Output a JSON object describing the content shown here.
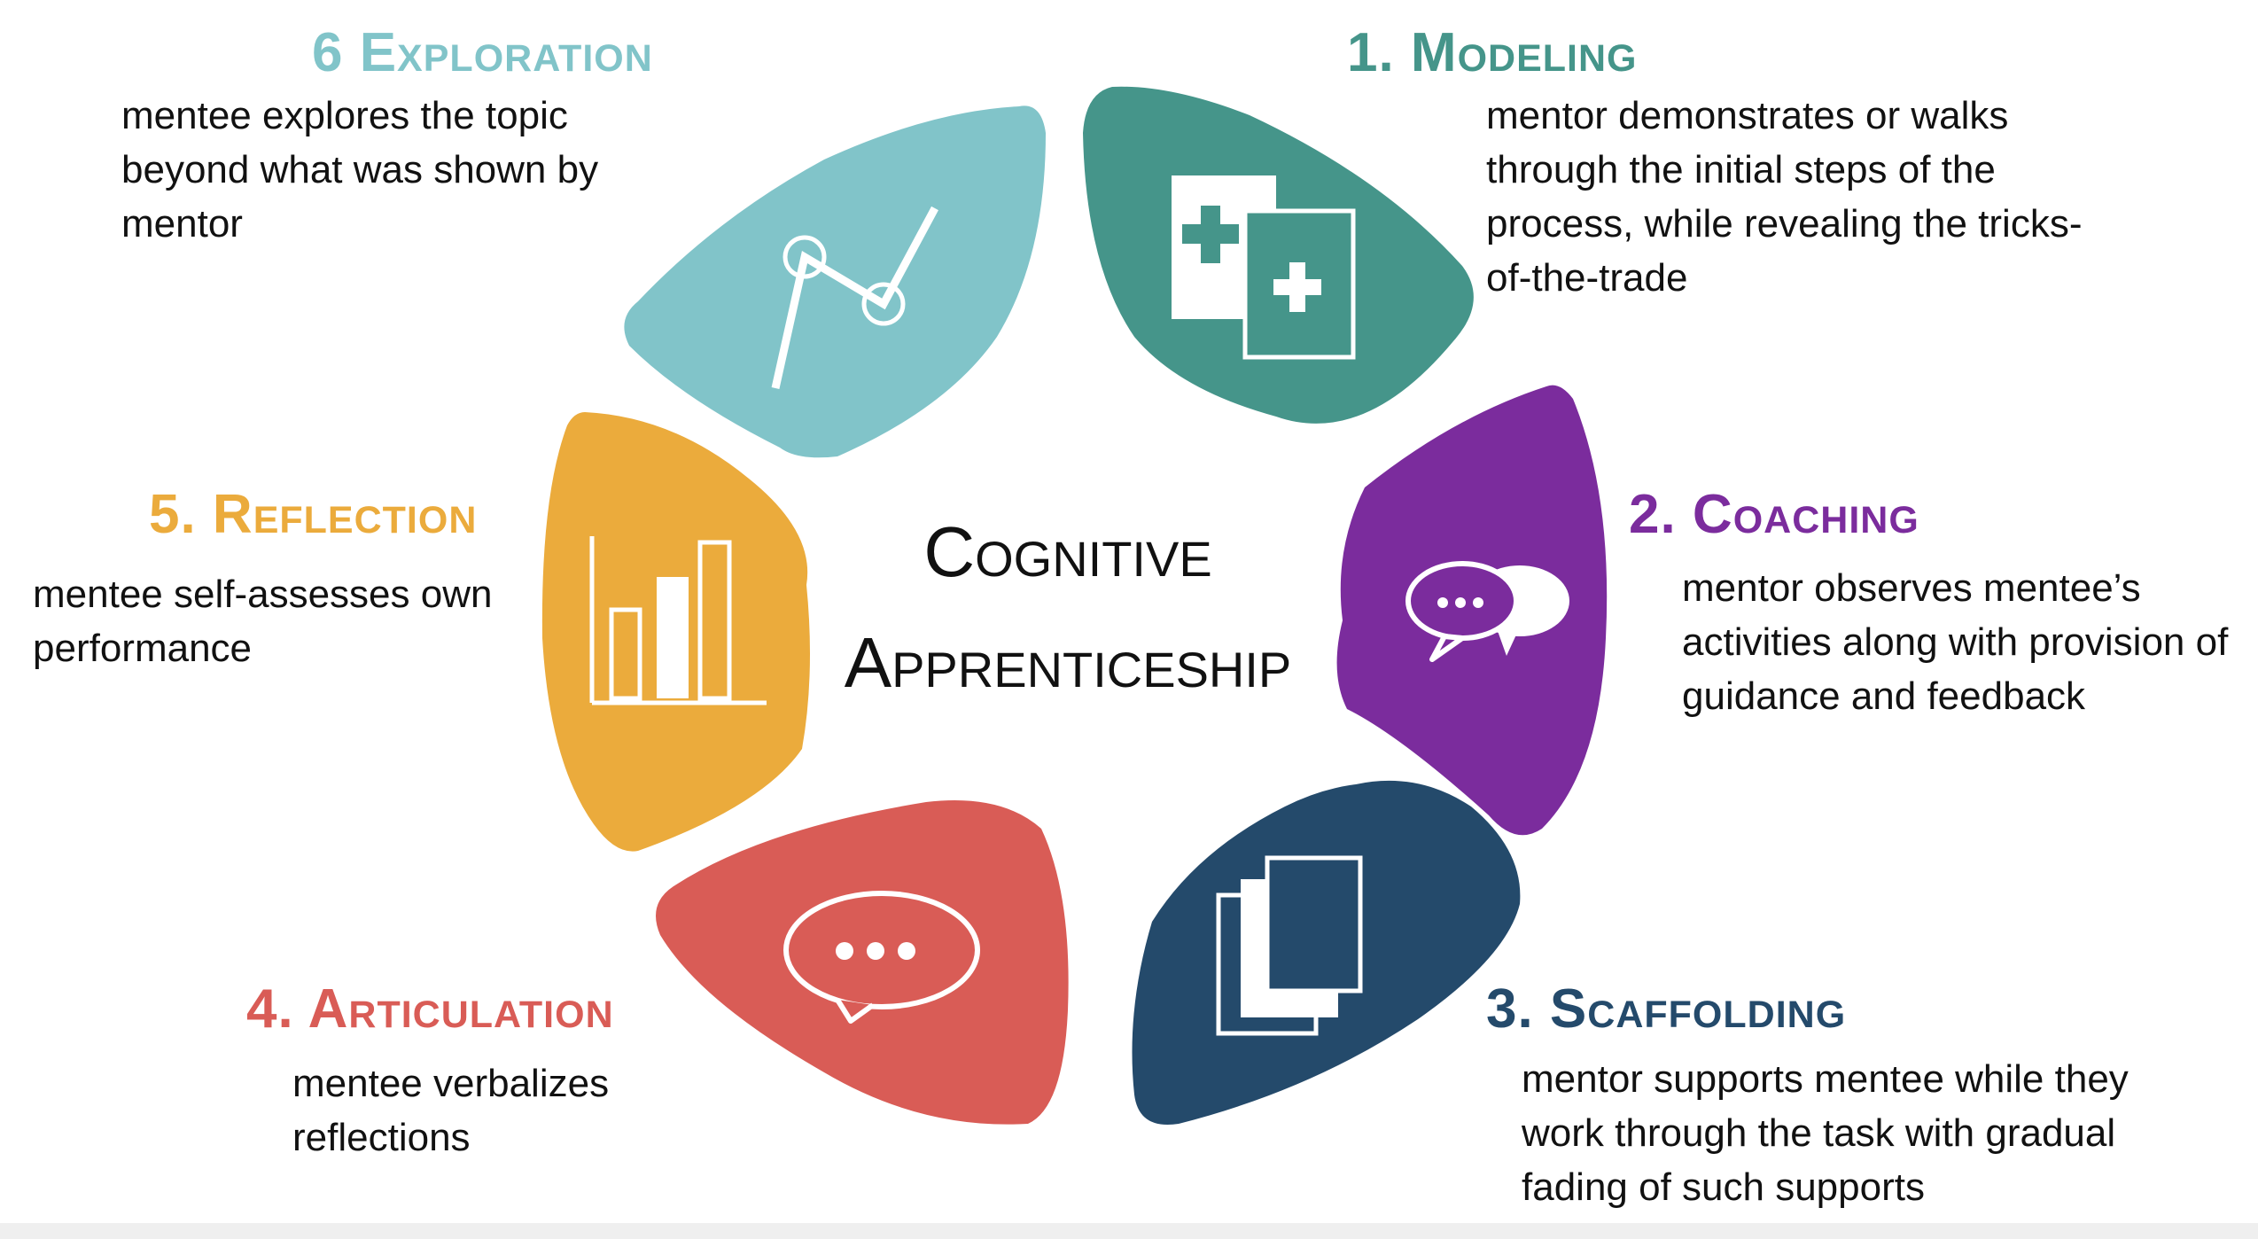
{
  "center": {
    "line1": "Cognitive",
    "line2": "Apprenticeship"
  },
  "stages": [
    {
      "title": "1. Modeling",
      "description": "mentor demonstrates or walks through the initial steps of the process, while revealing the tricks-of-the-trade",
      "color": "#45958a",
      "icon": "documents-plus-icon"
    },
    {
      "title": "2. Coaching",
      "description": "mentor observes mentee’s activities along with provision of guidance and feedback",
      "color": "#7b2c9d",
      "icon": "chat-bubbles-icon"
    },
    {
      "title": "3. Scaffolding",
      "description": "mentor supports mentee while they work through the task with gradual fading of such supports",
      "color": "#244a6b",
      "icon": "stacked-pages-icon"
    },
    {
      "title": "4. Articulation",
      "description": "mentee verbalizes reflections",
      "color": "#d95c56",
      "icon": "speech-bubble-icon"
    },
    {
      "title": "5. Reflection",
      "description": "mentee self-assesses own performance",
      "color": "#ebab3c",
      "icon": "bar-chart-icon"
    },
    {
      "title": "6 Exploration",
      "description": "mentee explores the topic beyond what was shown by mentor",
      "color": "#81c4c9",
      "icon": "line-chart-icon"
    }
  ]
}
